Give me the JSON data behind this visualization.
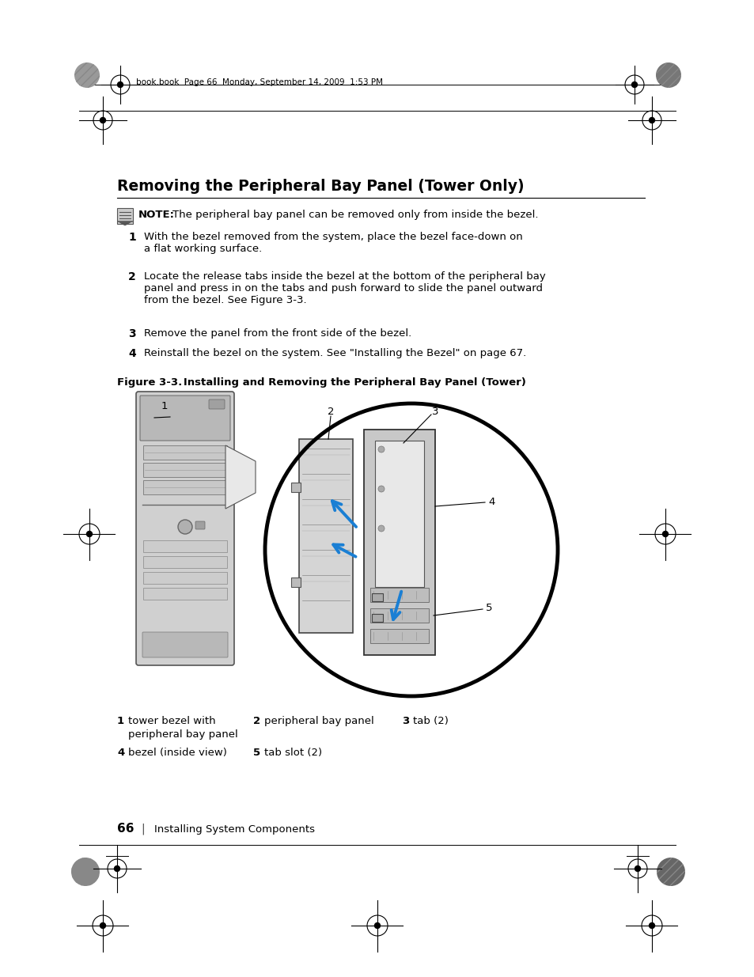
{
  "page_header": "book.book  Page 66  Monday, September 14, 2009  1:53 PM",
  "title": "Removing the Peripheral Bay Panel (Tower Only)",
  "note_bold": "NOTE:",
  "note_text": " The peripheral bay panel can be removed only from inside the bezel.",
  "steps": [
    {
      "num": "1",
      "text": "With the bezel removed from the system, place the bezel face-down on\na flat working surface."
    },
    {
      "num": "2",
      "text": "Locate the release tabs inside the bezel at the bottom of the peripheral bay\npanel and press in on the tabs and push forward to slide the panel outward\nfrom the bezel. See Figure 3-3."
    },
    {
      "num": "3",
      "text": "Remove the panel from the front side of the bezel."
    },
    {
      "num": "4",
      "text": "Reinstall the bezel on the system. See \"Installing the Bezel\" on page 67."
    }
  ],
  "figure_caption_bold": "Figure 3-3.",
  "figure_caption": "    Installing and Removing the Peripheral Bay Panel (Tower)",
  "page_number": "66",
  "page_footer": "Installing System Components",
  "bg_color": "#ffffff",
  "text_color": "#000000"
}
